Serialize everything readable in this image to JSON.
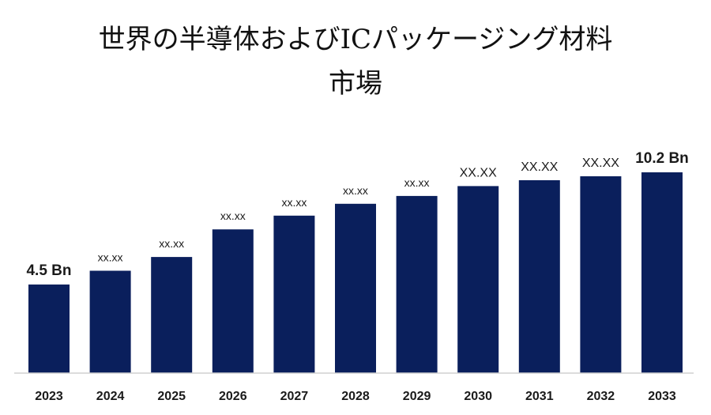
{
  "chart_data": {
    "type": "bar",
    "title_line1": "世界の半導体およびICパッケージング材料",
    "title_line2": "市場",
    "categories": [
      "2023",
      "2024",
      "2025",
      "2026",
      "2027",
      "2028",
      "2029",
      "2030",
      "2031",
      "2032",
      "2033"
    ],
    "values": [
      4.5,
      5.2,
      5.9,
      7.3,
      8.0,
      8.6,
      9.0,
      9.5,
      9.8,
      10.0,
      10.2
    ],
    "data_labels": [
      "4.5 Bn",
      "xx.xx",
      "xx.xx",
      "xx.xx",
      "xx.xx",
      "xx.xx",
      "xx.xx",
      "XX.XX",
      "XX.XX",
      "XX.XX",
      "10.2 Bn"
    ],
    "bar_color": "#0a1f5c",
    "axis_color": "#d0d0d0",
    "ylim": [
      0,
      10.2
    ],
    "grid": false,
    "legend": "none"
  }
}
